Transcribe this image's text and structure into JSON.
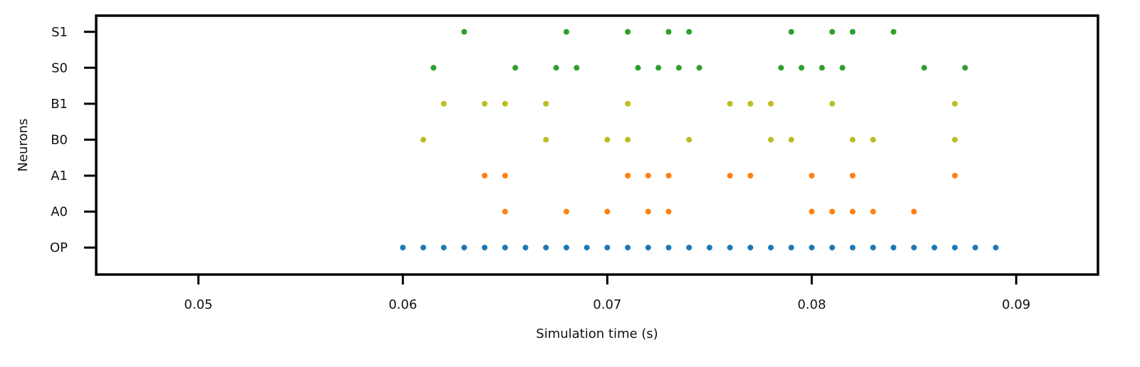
{
  "chart_data": {
    "type": "scatter",
    "title": "",
    "xlabel": "Simulation time (s)",
    "ylabel": "Neurons",
    "xlim": [
      0.045,
      0.094
    ],
    "xticks": [
      0.05,
      0.06,
      0.07,
      0.08,
      0.09
    ],
    "xtick_labels": [
      "0.05",
      "0.06",
      "0.07",
      "0.08",
      "0.09"
    ],
    "ylim": [
      -0.75,
      6.45
    ],
    "categories": [
      "OP",
      "A0",
      "A1",
      "B0",
      "B1",
      "S0",
      "S1"
    ],
    "grid": false,
    "legend": "none",
    "series": [
      {
        "neuron": "OP",
        "color": "#1f77b4",
        "x": [
          0.06,
          0.061,
          0.062,
          0.063,
          0.064,
          0.065,
          0.066,
          0.067,
          0.068,
          0.069,
          0.07,
          0.071,
          0.072,
          0.073,
          0.074,
          0.075,
          0.076,
          0.077,
          0.078,
          0.079,
          0.08,
          0.081,
          0.082,
          0.083,
          0.084,
          0.085,
          0.086,
          0.087,
          0.088,
          0.089
        ]
      },
      {
        "neuron": "A0",
        "color": "#ff7f0e",
        "x": [
          0.065,
          0.068,
          0.07,
          0.072,
          0.073,
          0.08,
          0.081,
          0.082,
          0.083,
          0.085
        ]
      },
      {
        "neuron": "A1",
        "color": "#ff7f0e",
        "x": [
          0.064,
          0.065,
          0.071,
          0.072,
          0.073,
          0.076,
          0.077,
          0.08,
          0.082,
          0.087
        ]
      },
      {
        "neuron": "B0",
        "color": "#bcbd22",
        "x": [
          0.061,
          0.067,
          0.07,
          0.071,
          0.074,
          0.078,
          0.079,
          0.082,
          0.083,
          0.087
        ]
      },
      {
        "neuron": "B1",
        "color": "#bcbd22",
        "x": [
          0.062,
          0.064,
          0.065,
          0.067,
          0.071,
          0.076,
          0.077,
          0.078,
          0.081,
          0.087
        ]
      },
      {
        "neuron": "S0",
        "color": "#2ca02c",
        "x": [
          0.0615,
          0.0655,
          0.0675,
          0.0685,
          0.0715,
          0.0725,
          0.0735,
          0.0745,
          0.0785,
          0.0795,
          0.0805,
          0.0815,
          0.0855,
          0.0875
        ]
      },
      {
        "neuron": "S1",
        "color": "#2ca02c",
        "x": [
          0.063,
          0.068,
          0.071,
          0.073,
          0.074,
          0.079,
          0.081,
          0.082,
          0.084
        ]
      }
    ]
  }
}
